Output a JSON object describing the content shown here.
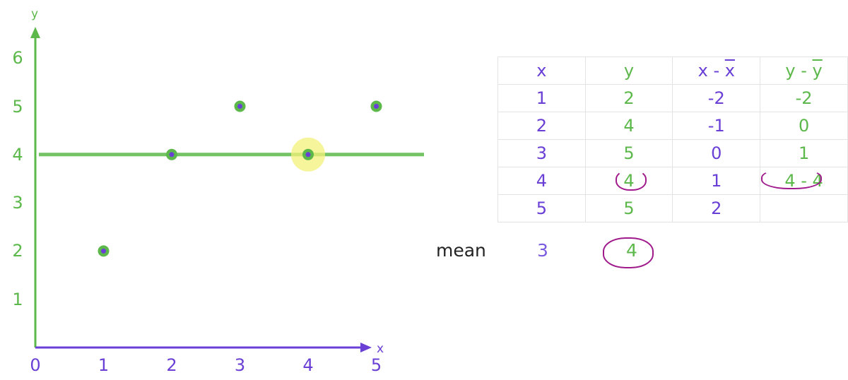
{
  "chart_data": {
    "type": "scatter",
    "xlabel": "x",
    "ylabel": "y",
    "xlim": [
      0,
      5
    ],
    "ylim": [
      0,
      6
    ],
    "x_ticks": [
      "0",
      "1",
      "2",
      "3",
      "4",
      "5"
    ],
    "y_ticks": [
      "1",
      "2",
      "3",
      "4",
      "5",
      "6"
    ],
    "points": [
      {
        "x": 1,
        "y": 2
      },
      {
        "x": 2,
        "y": 4
      },
      {
        "x": 3,
        "y": 5
      },
      {
        "x": 4,
        "y": 4
      },
      {
        "x": 5,
        "y": 5
      }
    ],
    "mean_line_y": 4,
    "highlighted_point_index": 3
  },
  "table": {
    "headers": {
      "x": "x",
      "y": "y",
      "dx_left": "x - ",
      "dx_bar": "x",
      "dy_left": "y - ",
      "dy_bar": "y"
    },
    "rows": [
      {
        "x": "1",
        "y": "2",
        "dx": "-2",
        "dy": "-2"
      },
      {
        "x": "2",
        "y": "4",
        "dx": "-1",
        "dy": "0"
      },
      {
        "x": "3",
        "y": "5",
        "dx": "0",
        "dy": "1"
      },
      {
        "x": "4",
        "y": "4",
        "dx": "1",
        "dy": "4 - 4"
      },
      {
        "x": "5",
        "y": "5",
        "dx": "2",
        "dy": ""
      }
    ]
  },
  "mean": {
    "label": "mean",
    "x": "3",
    "y": "4"
  },
  "colors": {
    "green": "#5cb84a",
    "purple": "#6a3fd6",
    "magenta": "#a01a8c",
    "highlight": "#f4f27a"
  }
}
